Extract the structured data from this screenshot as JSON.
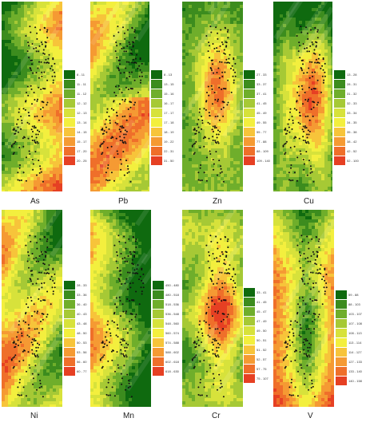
{
  "palette": [
    "#0f6a0f",
    "#3c8c1e",
    "#6fae2b",
    "#a6c935",
    "#d7e23b",
    "#f3ef3e",
    "#f7c43a",
    "#f59a33",
    "#ef6f2a",
    "#e64023"
  ],
  "panels": [
    {
      "title": "As",
      "legend": [
        "8 - 11",
        "11 - 11",
        "11 - 12",
        "12 - 12",
        "12 - 13",
        "13 - 14",
        "14 - 15",
        "15 - 17",
        "17 - 20",
        "20 - 25"
      ]
    },
    {
      "title": "Pb",
      "legend": [
        "8 - 13",
        "13 - 15",
        "15 - 16",
        "16 - 17",
        "17 - 17",
        "17 - 18",
        "18 - 19",
        "19 - 22",
        "22 - 31",
        "31 - 50"
      ]
    },
    {
      "title": "Zn",
      "legend": [
        "27 - 33",
        "33 - 37",
        "37 - 41",
        "41 - 45",
        "45 - 49",
        "49 - 55",
        "55 - 77",
        "77 - 88",
        "88 - 109",
        "109 - 140"
      ]
    },
    {
      "title": "Cu",
      "legend": [
        "13 - 28",
        "28 - 31",
        "31 - 32",
        "32 - 33",
        "33 - 34",
        "34 - 35",
        "35 - 38",
        "38 - 42",
        "42 - 52",
        "52 - 100"
      ]
    },
    {
      "title": "Ni",
      "legend": [
        "28 - 33",
        "33 - 36",
        "36 - 40",
        "40 - 43",
        "43 - 48",
        "48 - 50",
        "50 - 53",
        "53 - 56",
        "56 - 60",
        "60 - 77"
      ]
    },
    {
      "title": "Mn",
      "legend": [
        "450 - 480",
        "480 - 518",
        "518 - 536",
        "536 - 548",
        "548 - 560",
        "560 - 574",
        "574 - 588",
        "588 - 602",
        "602 - 618",
        "618 - 630"
      ]
    },
    {
      "title": "Cr",
      "legend": [
        "33 - 41",
        "41 - 45",
        "45 - 47",
        "47 - 49",
        "49 - 50",
        "50 - 51",
        "51 - 52",
        "52 - 57",
        "57 - 75",
        "75 - 107"
      ]
    },
    {
      "title": "V",
      "legend": [
        "59 - 88",
        "88 - 103",
        "103 - 107",
        "107 - 108",
        "108 - 113",
        "113 - 114",
        "114 - 127",
        "127 - 133",
        "133 - 140",
        "140 - 158"
      ]
    }
  ]
}
